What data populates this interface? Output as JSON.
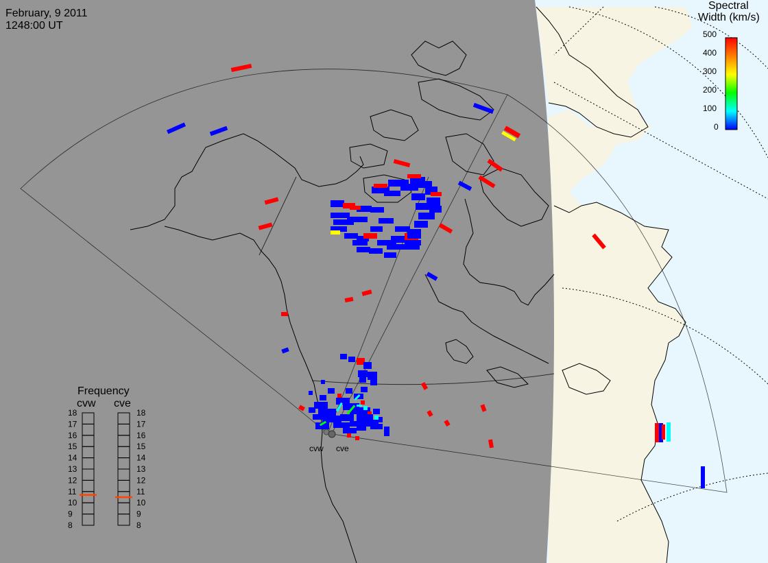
{
  "header": {
    "date": "February, 9 2011",
    "time": "1248:00 UT"
  },
  "colorbar": {
    "title_line1": "Spectral",
    "title_line2": "Width (km/s)",
    "ticks": [
      "500",
      "400",
      "300",
      "200",
      "100",
      "0"
    ],
    "colors": [
      "#ff0000",
      "#ff7f00",
      "#ffff00",
      "#00ff00",
      "#00ffff",
      "#0000ff"
    ]
  },
  "stations": [
    {
      "name": "cvw"
    },
    {
      "name": "cve"
    }
  ],
  "frequency_panel": {
    "title": "Frequency",
    "left_label": "cvw",
    "right_label": "cve",
    "ticks": [
      "18",
      "17",
      "16",
      "15",
      "14",
      "13",
      "12",
      "11",
      "10",
      "9",
      "8"
    ],
    "cvw_value": 10.7,
    "cve_value": 10.5,
    "marker_color": "#ff4500"
  },
  "colors": {
    "night": "#959595",
    "day_land": "#f8f4e4",
    "day_ocean": "#e8f6fd",
    "coast": "#000000"
  }
}
